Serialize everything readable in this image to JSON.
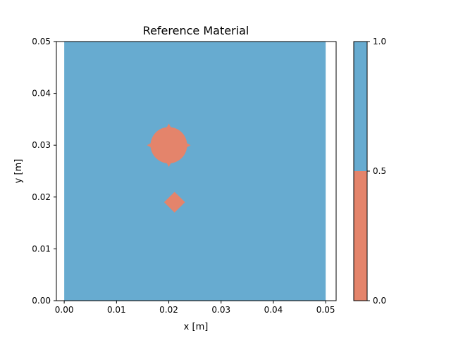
{
  "chart_data": {
    "type": "heatmap",
    "title": "Reference Material",
    "xlabel": "x [m]",
    "ylabel": "y [m]",
    "xlim": [
      -0.0015,
      0.052
    ],
    "ylim": [
      0.0,
      0.05
    ],
    "x_ticks": [
      {
        "value": 0.0,
        "label": "0.00"
      },
      {
        "value": 0.01,
        "label": "0.01"
      },
      {
        "value": 0.02,
        "label": "0.02"
      },
      {
        "value": 0.03,
        "label": "0.03"
      },
      {
        "value": 0.04,
        "label": "0.04"
      },
      {
        "value": 0.05,
        "label": "0.05"
      }
    ],
    "y_ticks": [
      {
        "value": 0.0,
        "label": "0.00"
      },
      {
        "value": 0.01,
        "label": "0.01"
      },
      {
        "value": 0.02,
        "label": "0.02"
      },
      {
        "value": 0.03,
        "label": "0.03"
      },
      {
        "value": 0.04,
        "label": "0.04"
      },
      {
        "value": 0.05,
        "label": "0.05"
      }
    ],
    "grid": false,
    "domain": {
      "x": [
        0.0,
        0.05
      ],
      "y": [
        0.0,
        0.05
      ]
    },
    "background_value": 1,
    "regions": [
      {
        "shape": "circle",
        "value": 0,
        "center": [
          0.02,
          0.03
        ],
        "radius": 0.0035
      },
      {
        "shape": "diamond",
        "value": 0,
        "center": [
          0.0211,
          0.019
        ],
        "half_width": 0.002
      }
    ],
    "colorbar": {
      "range": [
        0.0,
        1.0
      ],
      "ticks": [
        {
          "value": 0.0,
          "label": "0.0"
        },
        {
          "value": 0.5,
          "label": "0.5"
        },
        {
          "value": 1.0,
          "label": "1.0"
        }
      ],
      "bands": [
        {
          "from": 0.0,
          "to": 0.5,
          "color": "#e4846b"
        },
        {
          "from": 0.5,
          "to": 1.0,
          "color": "#67abd0"
        }
      ]
    },
    "colors": {
      "material_0": "#e4846b",
      "material_1": "#67abd0"
    }
  }
}
